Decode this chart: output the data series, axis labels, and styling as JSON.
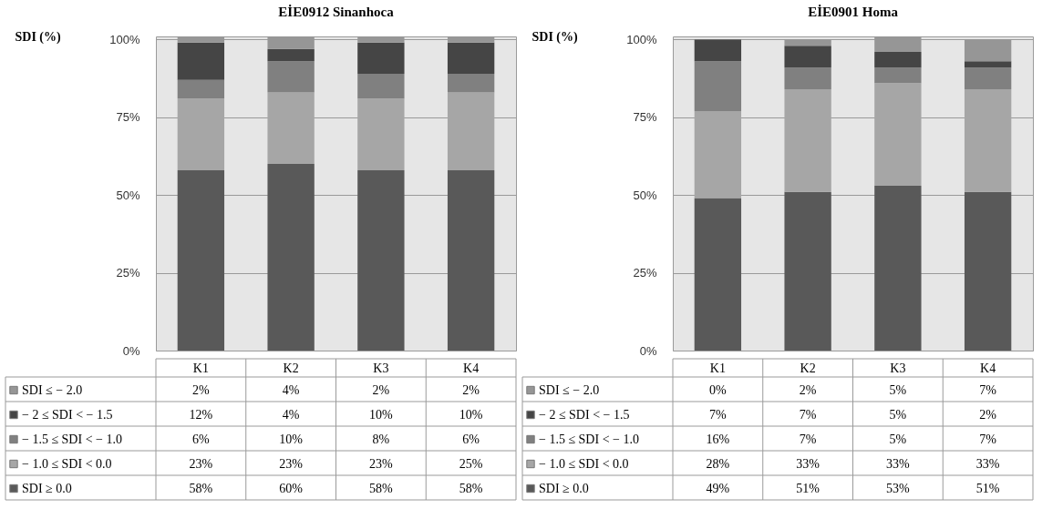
{
  "chart_data": [
    {
      "type": "bar",
      "stacked": true,
      "title": "EİE0912 Sinanhoca",
      "ylabel": "SDI (%)",
      "categories": [
        "K1",
        "K2",
        "K3",
        "K4"
      ],
      "ylim": [
        0,
        101
      ],
      "yticks": [
        {
          "value": 0,
          "label": "0%"
        },
        {
          "value": 25,
          "label": "25%"
        },
        {
          "value": 50,
          "label": "50%"
        },
        {
          "value": 75,
          "label": "75%"
        },
        {
          "value": 100,
          "label": "100%"
        }
      ],
      "grid": "y",
      "legend": "bottom left",
      "series": [
        {
          "name": "SDI ≥ 0.0",
          "color": "#595959",
          "values": [
            58,
            60,
            58,
            58
          ],
          "value_labels": [
            "58%",
            "60%",
            "58%",
            "58%"
          ]
        },
        {
          "name": "− 1.0 ≤ SDI < 0.0",
          "color": "#a6a6a6",
          "values": [
            23,
            23,
            23,
            25
          ],
          "value_labels": [
            "23%",
            "23%",
            "23%",
            "25%"
          ]
        },
        {
          "name": "− 1.5 ≤ SDI < − 1.0",
          "color": "#808080",
          "values": [
            6,
            10,
            8,
            6
          ],
          "value_labels": [
            "6%",
            "10%",
            "8%",
            "6%"
          ]
        },
        {
          "name": "− 2 ≤ SDI < − 1.5",
          "color": "#454545",
          "values": [
            12,
            4,
            10,
            10
          ],
          "value_labels": [
            "12%",
            "4%",
            "10%",
            "10%"
          ]
        },
        {
          "name": "SDI ≤ − 2.0",
          "color": "#969696",
          "values": [
            2,
            4,
            2,
            2
          ],
          "value_labels": [
            "2%",
            "4%",
            "2%",
            "2%"
          ]
        }
      ]
    },
    {
      "type": "bar",
      "stacked": true,
      "title": "EİE0901 Homa",
      "ylabel": "SDI (%)",
      "categories": [
        "K1",
        "K2",
        "K3",
        "K4"
      ],
      "ylim": [
        0,
        101
      ],
      "yticks": [
        {
          "value": 0,
          "label": "0%"
        },
        {
          "value": 25,
          "label": "25%"
        },
        {
          "value": 50,
          "label": "50%"
        },
        {
          "value": 75,
          "label": "75%"
        },
        {
          "value": 100,
          "label": "100%"
        }
      ],
      "grid": "y",
      "legend": "bottom left",
      "series": [
        {
          "name": "SDI ≥ 0.0",
          "color": "#595959",
          "values": [
            49,
            51,
            53,
            51
          ],
          "value_labels": [
            "49%",
            "51%",
            "53%",
            "51%"
          ]
        },
        {
          "name": "− 1.0 ≤ SDI < 0.0",
          "color": "#a6a6a6",
          "values": [
            28,
            33,
            33,
            33
          ],
          "value_labels": [
            "28%",
            "33%",
            "33%",
            "33%"
          ]
        },
        {
          "name": "− 1.5 ≤ SDI < − 1.0",
          "color": "#808080",
          "values": [
            16,
            7,
            5,
            7
          ],
          "value_labels": [
            "16%",
            "7%",
            "5%",
            "7%"
          ]
        },
        {
          "name": "− 2 ≤ SDI < − 1.5",
          "color": "#454545",
          "values": [
            7,
            7,
            5,
            2
          ],
          "value_labels": [
            "7%",
            "7%",
            "5%",
            "2%"
          ]
        },
        {
          "name": "SDI ≤ − 2.0",
          "color": "#969696",
          "values": [
            0,
            2,
            5,
            7
          ],
          "value_labels": [
            "0%",
            "2%",
            "5%",
            "7%"
          ]
        }
      ]
    }
  ]
}
